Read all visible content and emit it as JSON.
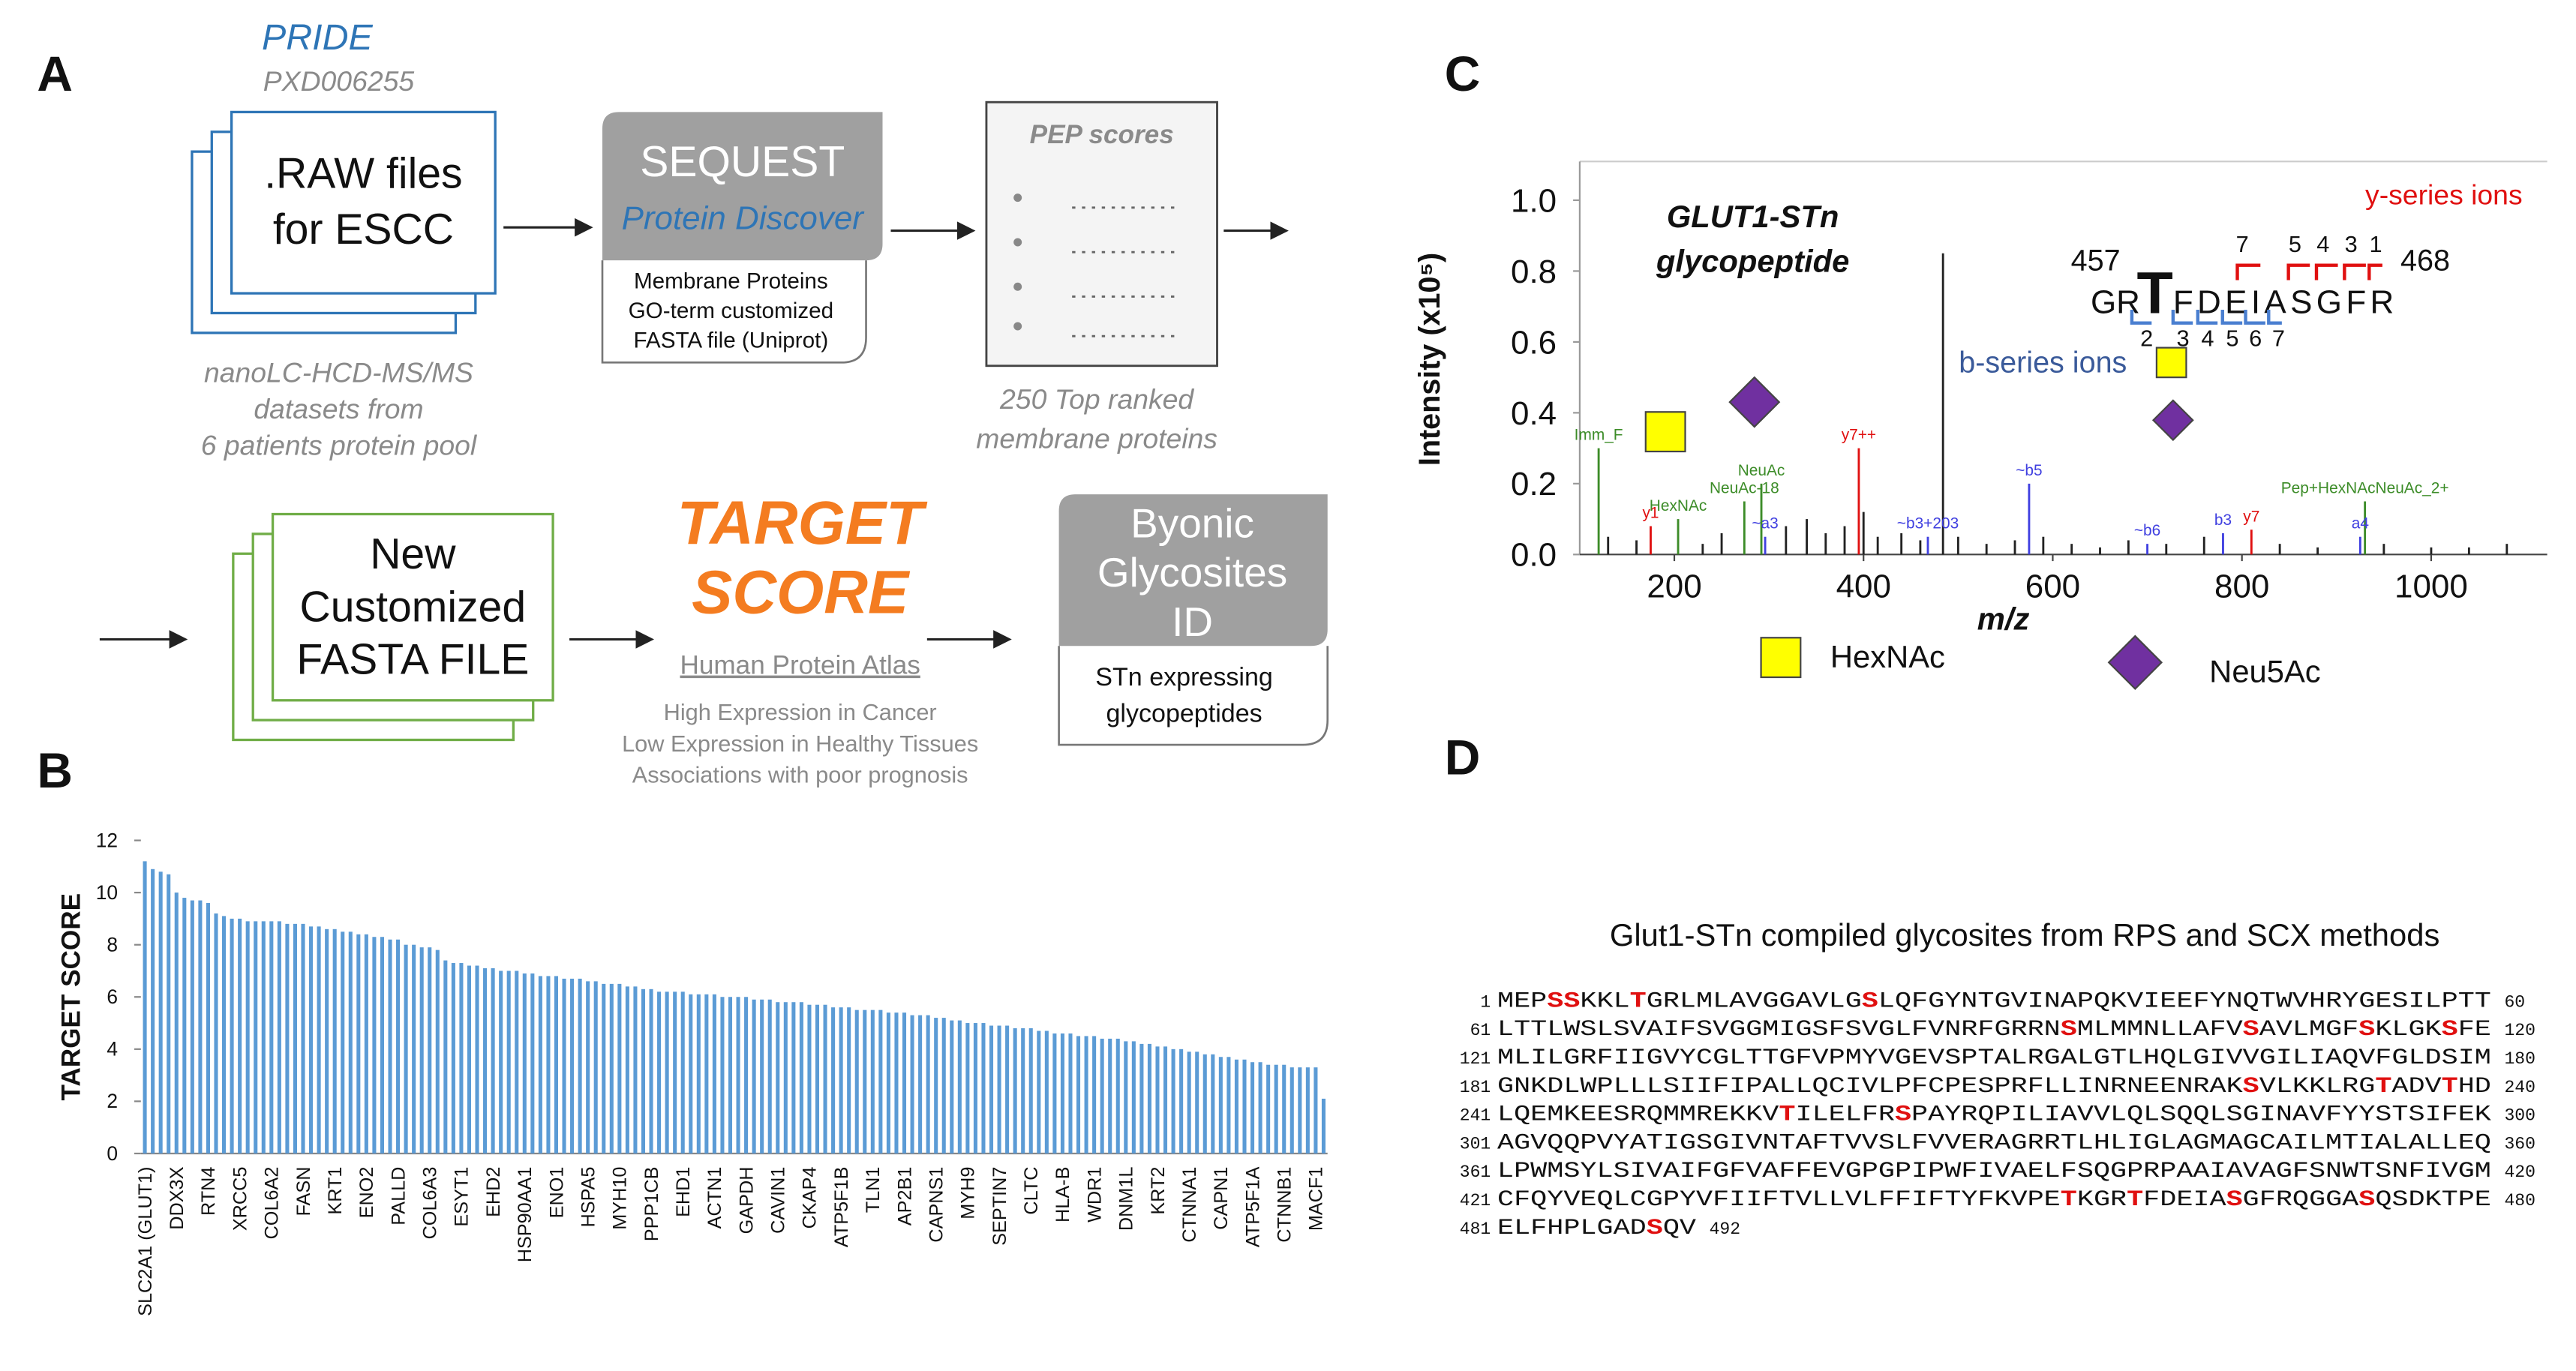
{
  "panel_labels": [
    "A",
    "B",
    "C",
    "D"
  ],
  "panel_a": {
    "source": {
      "title": "PRIDE",
      "id": "PXD006255"
    },
    "raw_files": [
      ".RAW files",
      "for ESCC"
    ],
    "raw_note": [
      "nanoLC-HCD-MS/MS",
      "datasets from",
      "6 patients protein pool"
    ],
    "sequest": {
      "title": "SEQUEST",
      "subtitle": "Protein Discover",
      "details": [
        "Membrane Proteins",
        "GO-term customized",
        "FASTA file (Uniprot)"
      ]
    },
    "pep": {
      "title": "PEP scores",
      "note": [
        "250 Top ranked",
        "membrane  proteins"
      ]
    },
    "fasta": [
      "New",
      "Customized",
      "FASTA FILE"
    ],
    "target": {
      "title": [
        "TARGET",
        "SCORE"
      ],
      "source": "Human Protein Atlas",
      "criteria": [
        "High Expression in Cancer",
        "Low Expression in Healthy Tissues",
        "Associations with poor prognosis"
      ]
    },
    "byonic": {
      "title": [
        "Byonic",
        "Glycosites",
        "ID"
      ],
      "details": [
        "STn expressing",
        "glycopeptides"
      ]
    }
  },
  "chart_data": [
    {
      "type": "bar",
      "ylabel": "TARGET SCORE",
      "color": "#5b9bd5",
      "ylim": [
        0,
        12
      ],
      "yticks": [
        0,
        2,
        4,
        6,
        8,
        10,
        12
      ],
      "categories": [
        "SLC2A1 (GLUT1)",
        null,
        null,
        null,
        "DDX3X",
        null,
        null,
        null,
        "RTN4",
        null,
        null,
        null,
        "XRCC5",
        null,
        null,
        null,
        "COL6A2",
        null,
        null,
        null,
        "FASN",
        null,
        null,
        null,
        "KRT1",
        null,
        null,
        null,
        "ENO2",
        null,
        null,
        null,
        "PALLD",
        null,
        null,
        null,
        "COL6A3",
        null,
        null,
        null,
        "ESYT1",
        null,
        null,
        null,
        "EHD2",
        null,
        null,
        null,
        "HSP90AA1",
        null,
        null,
        null,
        "ENO1",
        null,
        null,
        null,
        "HSPA5",
        null,
        null,
        null,
        "MYH10",
        null,
        null,
        null,
        "PPP1CB",
        null,
        null,
        null,
        "EHD1",
        null,
        null,
        null,
        "ACTN1",
        null,
        null,
        null,
        "GAPDH",
        null,
        null,
        null,
        "CAVIN1",
        null,
        null,
        null,
        "CKAP4",
        null,
        null,
        null,
        "ATP5F1B",
        null,
        null,
        null,
        "TLN1",
        null,
        null,
        null,
        "AP2B1",
        null,
        null,
        null,
        "CAPNS1",
        null,
        null,
        null,
        "MYH9",
        null,
        null,
        null,
        "SEPTIN7",
        null,
        null,
        null,
        "CLTC",
        null,
        null,
        null,
        "HLA-B",
        null,
        null,
        null,
        "WDR1",
        null,
        null,
        null,
        "DNM1L",
        null,
        null,
        null,
        "KRT2",
        null,
        null,
        null,
        "CTNNA1",
        null,
        null,
        null,
        "CAPN1",
        null,
        null,
        null,
        "ATP5F1A",
        null,
        null,
        null,
        "CTNNB1",
        null,
        null,
        null,
        "MACF1",
        null
      ],
      "values": [
        11.2,
        10.9,
        10.8,
        10.7,
        10.0,
        9.8,
        9.7,
        9.7,
        9.6,
        9.2,
        9.1,
        9.0,
        9.0,
        8.9,
        8.9,
        8.9,
        8.9,
        8.9,
        8.8,
        8.8,
        8.8,
        8.7,
        8.7,
        8.6,
        8.6,
        8.5,
        8.5,
        8.4,
        8.4,
        8.3,
        8.3,
        8.2,
        8.2,
        8.0,
        8.0,
        7.9,
        7.9,
        7.8,
        7.4,
        7.3,
        7.3,
        7.2,
        7.2,
        7.1,
        7.1,
        7.0,
        7.0,
        7.0,
        6.9,
        6.9,
        6.8,
        6.8,
        6.8,
        6.7,
        6.7,
        6.7,
        6.6,
        6.6,
        6.5,
        6.5,
        6.5,
        6.4,
        6.4,
        6.3,
        6.3,
        6.2,
        6.2,
        6.2,
        6.2,
        6.1,
        6.1,
        6.1,
        6.1,
        6.0,
        6.0,
        6.0,
        6.0,
        5.9,
        5.9,
        5.9,
        5.8,
        5.8,
        5.8,
        5.8,
        5.7,
        5.7,
        5.7,
        5.6,
        5.6,
        5.6,
        5.5,
        5.5,
        5.5,
        5.5,
        5.4,
        5.4,
        5.4,
        5.3,
        5.3,
        5.3,
        5.2,
        5.2,
        5.1,
        5.1,
        5.0,
        5.0,
        5.0,
        4.9,
        4.9,
        4.9,
        4.8,
        4.8,
        4.8,
        4.7,
        4.7,
        4.6,
        4.6,
        4.6,
        4.5,
        4.5,
        4.5,
        4.4,
        4.4,
        4.4,
        4.3,
        4.3,
        4.2,
        4.2,
        4.1,
        4.1,
        4.0,
        4.0,
        3.9,
        3.9,
        3.8,
        3.8,
        3.7,
        3.7,
        3.6,
        3.6,
        3.5,
        3.5,
        3.4,
        3.4,
        3.4,
        3.3,
        3.3,
        3.3,
        3.3,
        2.1
      ]
    },
    {
      "type": "spectrum",
      "title": [
        "GLUT1-STn",
        "glycopeptide"
      ],
      "xlabel": "m/z",
      "ylabel": "Intensity (x10⁵)",
      "xlim": [
        100,
        1100
      ],
      "xticks": [
        200,
        400,
        600,
        800,
        1000
      ],
      "ylim": [
        0,
        1.1
      ],
      "yticks": [
        {
          "value": 0,
          "label": "0.0"
        },
        {
          "value": 0.2,
          "label": "0.2"
        },
        {
          "value": 0.4,
          "label": "0.4"
        },
        {
          "value": 0.6,
          "label": "0.6"
        },
        {
          "value": 0.8,
          "label": "0.8"
        },
        {
          "value": 1.0,
          "label": "1.0"
        }
      ],
      "peak_groups": [
        {
          "color": "#222222",
          "x": [
            130,
            160,
            230,
            250,
            318,
            340,
            360,
            380,
            400,
            415,
            440,
            460,
            484,
            500,
            530,
            560,
            590,
            620,
            650,
            680,
            720,
            760,
            840,
            880,
            950,
            1000,
            1040,
            1080
          ],
          "values": [
            0.05,
            0.04,
            0.03,
            0.06,
            0.08,
            0.1,
            0.06,
            0.08,
            0.12,
            0.05,
            0.06,
            0.04,
            0.85,
            0.05,
            0.03,
            0.04,
            0.05,
            0.03,
            0.02,
            0.04,
            0.03,
            0.05,
            0.03,
            0.02,
            0.03,
            0.02,
            0.02,
            0.03
          ]
        },
        {
          "color": "#3c8c28",
          "x": [
            120,
            204,
            274,
            292,
            930
          ],
          "values": [
            0.3,
            0.1,
            0.15,
            0.2,
            0.15
          ],
          "labels": [
            "Imm_F",
            "HexNAc",
            "NeuAc-18",
            "NeuAc",
            "Pep+HexNAcNeuAc_2+"
          ]
        },
        {
          "color": "#e01010",
          "x": [
            175,
            395,
            810
          ],
          "values": [
            0.08,
            0.3,
            0.07
          ],
          "labels": [
            "y1",
            "y7++",
            "y7"
          ]
        },
        {
          "color": "#4040e0",
          "x": [
            296,
            468,
            575,
            700,
            780,
            925
          ],
          "values": [
            0.05,
            0.05,
            0.2,
            0.03,
            0.06,
            0.05
          ],
          "labels": [
            "~a3",
            "~b3+203",
            "~b5",
            "~b6",
            "b3",
            "a4"
          ]
        }
      ],
      "peptide": {
        "start": "457",
        "prefix": "GR",
        "site": "T",
        "suffix": "FDEIASGFR",
        "end": "468",
        "y_ions": [
          "7",
          "5",
          "4",
          "3",
          "1"
        ],
        "b_ions": [
          "2",
          "3",
          "4",
          "5",
          "6",
          "7"
        ],
        "y_label": "y-series ions",
        "b_label": "b-series ions"
      },
      "legend": [
        "HexNAc",
        "Neu5Ac"
      ]
    }
  ],
  "panel_d": {
    "title": "Glut1-STn compiled glycosites from RPS and SCX methods",
    "lines": [
      {
        "start": "1",
        "segments": [
          "MEP",
          "SS",
          "KKL",
          "T",
          "GRLMLAVGGAVLG",
          "S",
          "LQFGYNTGVINAPQKVIEEFYNQTWVHRYGESILPTT"
        ],
        "end": "60"
      },
      {
        "start": "61",
        "segments": [
          "LTTLWSLSVAIFSVGGMIGSFSVGLFVNRFGRRN",
          "S",
          "MLMMNLLAFV",
          "S",
          "AVLMGF",
          "S",
          "KLGK",
          "S",
          "FE"
        ],
        "end": "120"
      },
      {
        "start": "121",
        "segments": [
          "MLILGRFIIGVYCGLTTGFVPMYVGEVSPTALRGALGTLHQLGIVVGILIAQVFGLDSIM"
        ],
        "end": "180"
      },
      {
        "start": "181",
        "segments": [
          "GNKDLWPLLLSIIFIPALLQCIVLPFCPESPRFLLINRNEENRAK",
          "S",
          "VLKKLRG",
          "T",
          "ADV",
          "T",
          "HD"
        ],
        "end": "240"
      },
      {
        "start": "241",
        "segments": [
          "LQEMKEESRQMMREKKV",
          "T",
          "ILELFR",
          "S",
          "PAYRQPILIAVVLQLSQQLSGINAVFYYSTSIFEK"
        ],
        "end": "300"
      },
      {
        "start": "301",
        "segments": [
          "AGVQQPVYATIGSGIVNTAFTVVSLFVVERAGRRTLHLIGLAGMAGCAILMTIALALLEQ"
        ],
        "end": "360"
      },
      {
        "start": "361",
        "segments": [
          "LPWMSYLSIVAIFGFVAFFEVGPGPIPWFIVAELFSQGPRPAAIAVAGFSNWTSNFIVGM"
        ],
        "end": "420"
      },
      {
        "start": "421",
        "segments": [
          "CFQYVEQLCGPYVFIIFTVLLVLFFIFTYFKVPE",
          "T",
          "KGR",
          "T",
          "FDEIA",
          "S",
          "GFRQGGA",
          "S",
          "QSDKTPE"
        ],
        "end": "480"
      },
      {
        "start": "481",
        "segments": [
          "ELFHPLGAD",
          "S",
          "QV"
        ],
        "end": "492"
      }
    ]
  }
}
